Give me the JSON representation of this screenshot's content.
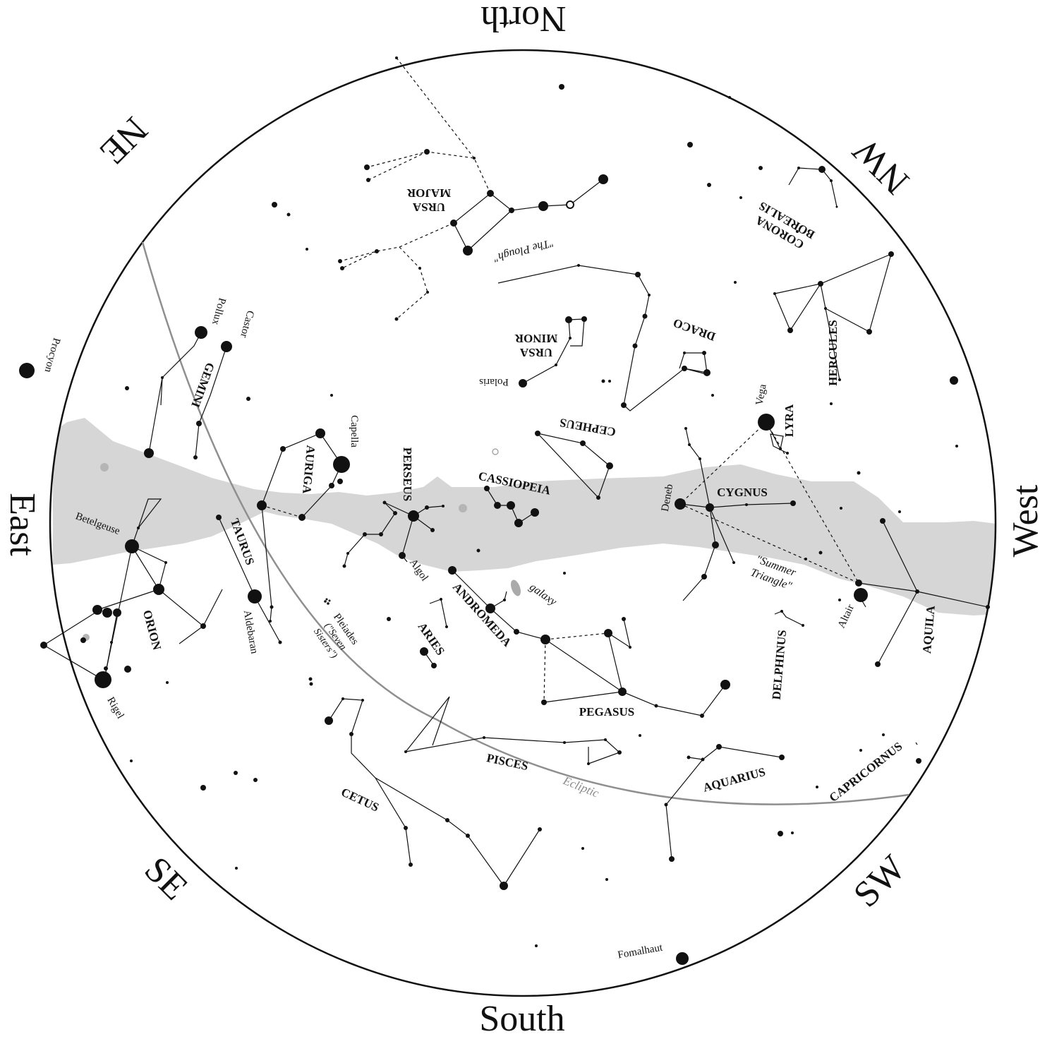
{
  "directions": {
    "north": "North",
    "south": "South",
    "east": "East",
    "west": "West",
    "ne": "NE",
    "nw": "NW",
    "se": "SE",
    "sw": "SW"
  },
  "constellations": {
    "ursa_major": [
      "URSA",
      "MAJOR"
    ],
    "corona_borealis": [
      "CORONA",
      "BOREALIS"
    ],
    "ursa_minor": [
      "URSA",
      "MINOR"
    ],
    "draco": "DRACO",
    "hercules": "HERCULES",
    "gemini": "GEMINI",
    "cepheus": "CEPHEUS",
    "lyra": "LYRA",
    "perseus": "PERSEUS",
    "auriga": "AURIGA",
    "cassiopeia": "CASSIOPEIA",
    "cygnus": "CYGNUS",
    "taurus": "TAURUS",
    "andromeda": "ANDROMEDA",
    "orion": "ORION",
    "aries": "ARIES",
    "delphinus": "DELPHINUS",
    "aquila": "AQUILA",
    "pegasus": "PEGASUS",
    "pisces": "PISCES",
    "cetus": "CETUS",
    "aquarius": "AQUARIUS",
    "capricornus": "CAPRICORNUS"
  },
  "stars": {
    "procyon": "Procyon",
    "pollux": "Pollux",
    "castor": "Castor",
    "polaris": "Polaris",
    "vega": "Vega",
    "capella": "Capella",
    "deneb": "Deneb",
    "betelgeuse": "Betelgeuse",
    "algol": "Algol",
    "aldebaran": "Aldebaran",
    "altair": "Altair",
    "rigel": "Rigel",
    "fomalhaut": "Fomalhaut"
  },
  "annotations": {
    "plough": "\"The Plough\"",
    "summer_triangle": [
      "\"Summer",
      "Triangle\""
    ],
    "galaxy": "galaxy",
    "pleiades": [
      "Pleiades",
      "(\"Seven",
      "Sisters\")"
    ],
    "ecliptic": "Ecliptic"
  },
  "colors": {
    "milky_way": "#d6d6d6",
    "ecliptic": "#8f8f8f",
    "ink": "#111111",
    "background": "#ffffff"
  }
}
